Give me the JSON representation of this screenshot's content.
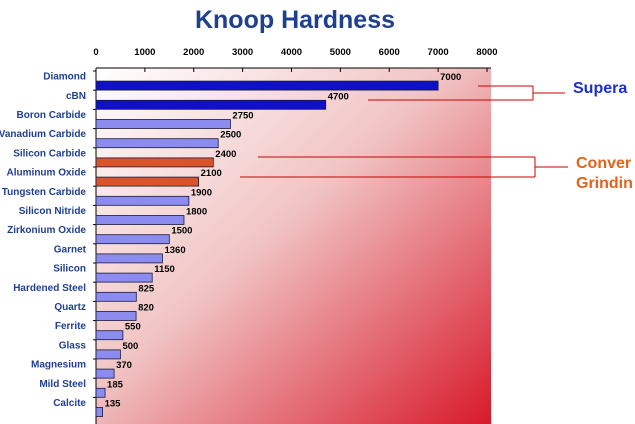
{
  "chart_data": {
    "type": "bar",
    "orientation": "horizontal",
    "title": "Knoop Hardness",
    "xlim": [
      0,
      8000
    ],
    "x_ticks": [
      "0",
      "1000",
      "2000",
      "3000",
      "4000",
      "5000",
      "6000",
      "7000",
      "8000"
    ],
    "categories": [
      "Diamond",
      "cBN",
      "Boron Carbide",
      "Vanadium Carbide",
      "Silicon Carbide",
      "Aluminum Oxide",
      "Tungsten Carbide",
      "Silicon Nitride",
      "Zirkonium Oxide",
      "Garnet",
      "Silicon",
      "Hardened Steel",
      "Quartz",
      "Ferrite",
      "Glass",
      "Magnesium",
      "Mild Steel",
      "Calcite"
    ],
    "values": [
      7000,
      4700,
      2750,
      2500,
      2400,
      2100,
      1900,
      1800,
      1500,
      1360,
      1150,
      825,
      820,
      550,
      500,
      370,
      185,
      135
    ],
    "data_labels": [
      "7000",
      "4700",
      "2750",
      "2500",
      "2400",
      "2100",
      "1900",
      "1800",
      "1500",
      "1360",
      "1150",
      "825",
      "820",
      "550",
      "500",
      "370",
      "185",
      "135"
    ],
    "bar_colors": [
      "#1010c8",
      "#1010c8",
      "#8c8cf0",
      "#8c8cf0",
      "#d9542a",
      "#d9542a",
      "#8c8cf0",
      "#8c8cf0",
      "#8c8cf0",
      "#8c8cf0",
      "#8c8cf0",
      "#8c8cf0",
      "#8c8cf0",
      "#8c8cf0",
      "#8c8cf0",
      "#8c8cf0",
      "#8c8cf0",
      "#8c8cf0"
    ],
    "background": "gradient white to red",
    "grid": false,
    "legend": "none"
  },
  "annotations": [
    {
      "text": "Supera",
      "color": "#1b2fd0",
      "bracket_color": "#cc0000",
      "targets": [
        "Diamond",
        "cBN"
      ]
    },
    {
      "lines": [
        "Conver",
        "Grindin"
      ],
      "color": "#e06419",
      "bracket_color": "#cc0000",
      "targets": [
        "Silicon Carbide",
        "Aluminum Oxide"
      ]
    }
  ],
  "colors": {
    "title": "#1f3f8f",
    "category_labels": "#1f3f8f",
    "superabrasive_bar": "#1010c8",
    "conventional_bar": "#d9542a",
    "other_bar": "#8c8cf0"
  }
}
